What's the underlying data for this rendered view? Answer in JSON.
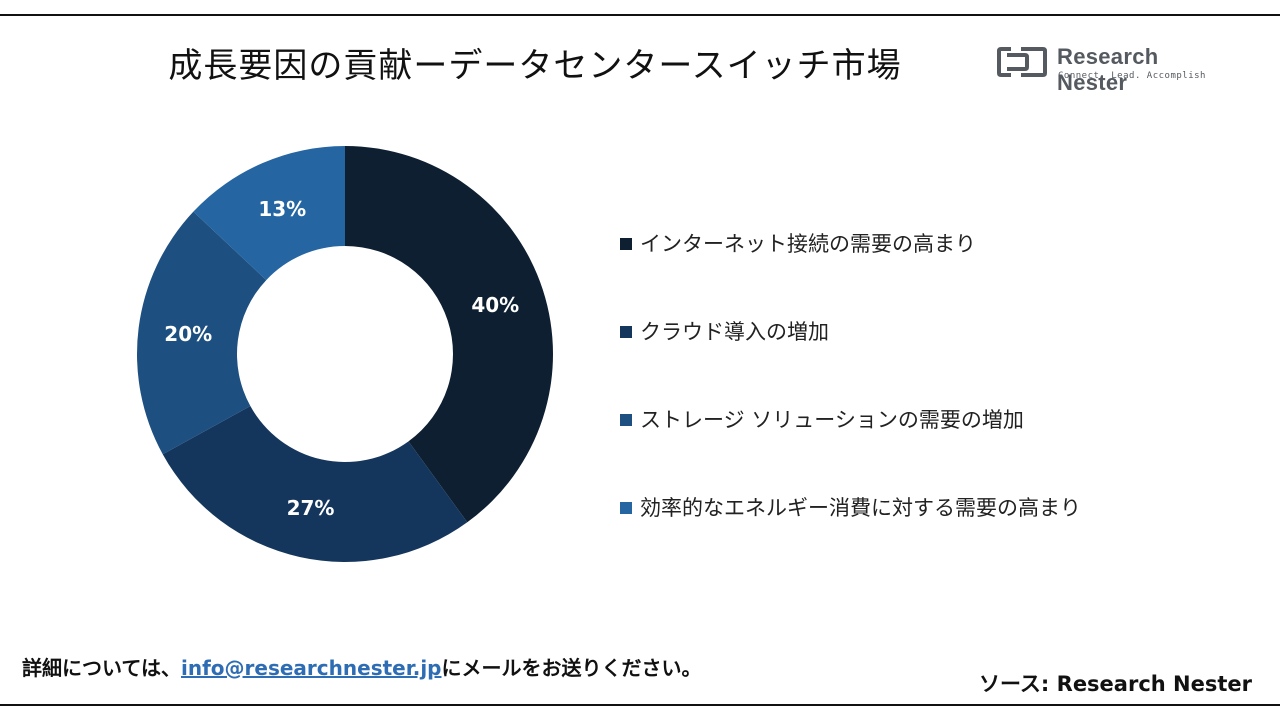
{
  "title": "成長要因の貢献ーデータセンタースイッチ市場",
  "logo": {
    "name": "Research Nester",
    "tagline": "Connect. Lead. Accomplish"
  },
  "chart_data": {
    "type": "pie",
    "donut": true,
    "categories": [
      "インターネット接続の需要の高まり",
      "クラウド導入の増加",
      "ストレージ ソリューションの需要の増加",
      "効率的なエネルギー消費に対する需要の高まり"
    ],
    "values": [
      40,
      27,
      20,
      13
    ],
    "value_labels": [
      "40%",
      "27%",
      "20%",
      "13%"
    ],
    "colors": [
      "#0e1f32",
      "#15365c",
      "#1d4f81",
      "#2565a2"
    ],
    "legend_position": "right"
  },
  "footer": {
    "prefix": "詳細については、",
    "email": "info@researchnester.jp",
    "suffix": "にメールをお送りください。"
  },
  "source": "ソース: Research Nester"
}
